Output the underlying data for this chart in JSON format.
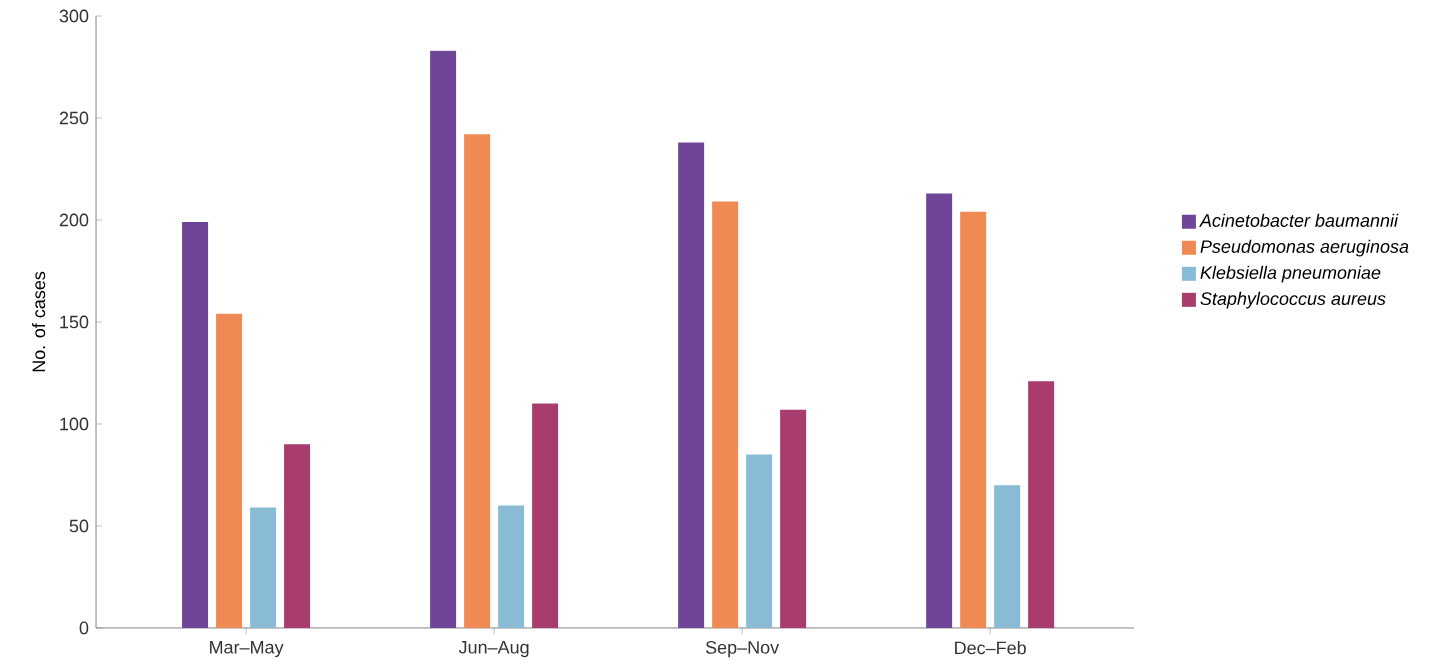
{
  "chart_data": {
    "type": "bar",
    "ylabel": "No. of cases",
    "categories": [
      "Mar–May",
      "Jun–Aug",
      "Sep–Nov",
      "Dec–Feb"
    ],
    "series": [
      {
        "name": "Acinetobacter baumannii",
        "color": "#6f4597",
        "values": [
          199,
          283,
          238,
          213
        ]
      },
      {
        "name": "Pseudomonas aeruginosa",
        "color": "#f08a55",
        "values": [
          154,
          242,
          209,
          204
        ]
      },
      {
        "name": "Klebsiella pneumoniae",
        "color": "#8abbd4",
        "values": [
          59,
          60,
          85,
          70
        ]
      },
      {
        "name": "Staphylococcus aureus",
        "color": "#a93c6e",
        "values": [
          90,
          110,
          107,
          121
        ]
      }
    ],
    "ylim": [
      0,
      300
    ],
    "yticks": [
      0,
      50,
      100,
      150,
      200,
      250,
      300
    ],
    "legend": "right"
  }
}
